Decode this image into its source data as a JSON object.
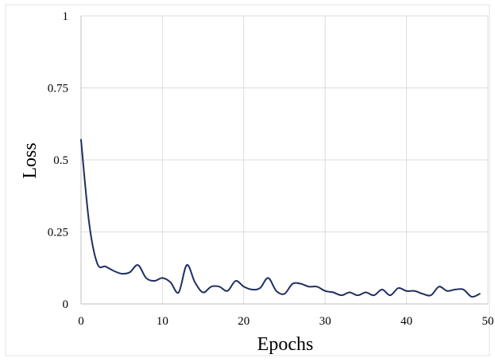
{
  "chart_data": {
    "type": "line",
    "title": "",
    "xlabel": "Epochs",
    "ylabel": "Loss",
    "xlim": [
      0,
      50
    ],
    "ylim": [
      0,
      1
    ],
    "x_ticks": [
      0,
      10,
      20,
      30,
      40,
      50
    ],
    "y_ticks": [
      0,
      0.25,
      0.5,
      0.75,
      1
    ],
    "x_tick_labels": [
      "0",
      "10",
      "20",
      "30",
      "40",
      "50"
    ],
    "y_tick_labels": [
      "0",
      "0.25",
      "0.5",
      "0.75",
      "1"
    ],
    "grid": true,
    "legend": "none",
    "series": [
      {
        "color": "#1f2f5f",
        "smooth": true,
        "x": [
          0,
          1,
          2,
          3,
          4,
          5,
          6,
          7,
          8,
          9,
          10,
          11,
          12,
          13,
          14,
          15,
          16,
          17,
          18,
          19,
          20,
          21,
          22,
          23,
          24,
          25,
          26,
          27,
          28,
          29,
          30,
          31,
          32,
          33,
          34,
          35,
          36,
          37,
          38,
          39,
          40,
          41,
          42,
          43,
          44,
          45,
          46,
          47,
          48,
          49
        ],
        "y": [
          0.57,
          0.28,
          0.14,
          0.13,
          0.115,
          0.105,
          0.11,
          0.135,
          0.09,
          0.08,
          0.09,
          0.075,
          0.04,
          0.135,
          0.075,
          0.04,
          0.06,
          0.06,
          0.045,
          0.08,
          0.06,
          0.05,
          0.055,
          0.09,
          0.045,
          0.035,
          0.07,
          0.07,
          0.06,
          0.06,
          0.045,
          0.04,
          0.03,
          0.04,
          0.03,
          0.04,
          0.03,
          0.05,
          0.03,
          0.055,
          0.045,
          0.045,
          0.035,
          0.03,
          0.06,
          0.045,
          0.05,
          0.05,
          0.025,
          0.035
        ]
      }
    ]
  }
}
